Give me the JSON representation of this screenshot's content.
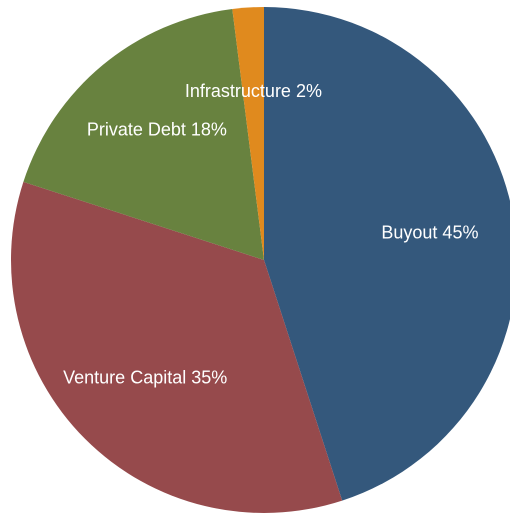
{
  "chart_data": {
    "type": "pie",
    "values": [
      45,
      35,
      18,
      2
    ],
    "value_labels": [
      "Buyout 45%",
      "Venture Capital 35%",
      "Private Debt 18%",
      "Infrastructure 2%"
    ],
    "colors": [
      "#34587c",
      "#964a4c",
      "#68823f",
      "#e08a1e"
    ]
  }
}
